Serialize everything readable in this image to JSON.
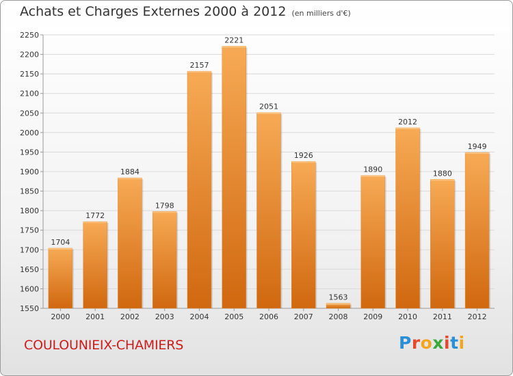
{
  "header": {
    "title": "Achats et Charges Externes 2000 à 2012",
    "unit": "(en milliers d'€)"
  },
  "footer": {
    "commune": "COULOUNIEIX-CHAMIERS"
  },
  "brand": {
    "letters": [
      "P",
      "r",
      "o",
      "x",
      "i",
      "t",
      "i"
    ],
    "colors": [
      "#2a8fd6",
      "#e8472b",
      "#f3a51e",
      "#3aa93a",
      "#e8472b",
      "#2a8fd6",
      "#f3a51e"
    ]
  },
  "chart_data": {
    "type": "bar",
    "title": "Achats et Charges Externes 2000 à 2012",
    "categories": [
      "2000",
      "2001",
      "2002",
      "2003",
      "2004",
      "2005",
      "2006",
      "2007",
      "2008",
      "2009",
      "2010",
      "2011",
      "2012"
    ],
    "values": [
      1704,
      1772,
      1884,
      1798,
      2157,
      2221,
      2051,
      1926,
      1563,
      1890,
      2012,
      1880,
      1949
    ],
    "ylim": [
      1550,
      2250
    ],
    "yticks": [
      1550,
      1600,
      1650,
      1700,
      1750,
      1800,
      1850,
      1900,
      1950,
      2000,
      2050,
      2100,
      2150,
      2200,
      2250
    ],
    "grid": true,
    "legend": "none",
    "colors": {
      "bar_light": "#f6a54f",
      "bar_dark": "#d26b12",
      "grid": "#d9d9d9"
    }
  }
}
